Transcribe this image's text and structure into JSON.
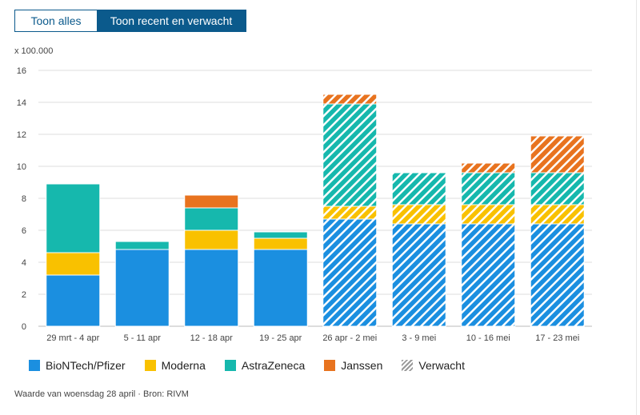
{
  "toggle": {
    "show_all": "Toon alles",
    "show_recent": "Toon recent en verwacht"
  },
  "source_note": "Waarde van woensdag 28 april · Bron: RIVM",
  "colors": {
    "pfizer": "#1b8fe0",
    "moderna": "#f9c100",
    "astrazeneca": "#16b8ad",
    "janssen": "#e8731f",
    "accent": "#0b5a8c",
    "grid": "#dddddd"
  },
  "legend": [
    {
      "key": "pfizer",
      "label": "BioNTech/Pfizer"
    },
    {
      "key": "moderna",
      "label": "Moderna"
    },
    {
      "key": "astrazeneca",
      "label": "AstraZeneca"
    },
    {
      "key": "janssen",
      "label": "Janssen"
    },
    {
      "key": "expected",
      "label": "Verwacht"
    }
  ],
  "chart_data": {
    "type": "bar",
    "stacked": true,
    "unit_label": "x 100.000",
    "ylim": [
      0,
      16
    ],
    "yticks": [
      0,
      2,
      4,
      6,
      8,
      10,
      12,
      14,
      16
    ],
    "categories": [
      "29 mrt - 4 apr",
      "5 - 11 apr",
      "12 - 18 apr",
      "19 - 25 apr",
      "26 apr - 2 mei",
      "3 - 9 mei",
      "10 - 16 mei",
      "17 - 23 mei"
    ],
    "expected": [
      false,
      false,
      false,
      false,
      true,
      true,
      true,
      true
    ],
    "series": [
      {
        "name": "BioNTech/Pfizer",
        "key": "pfizer",
        "values": [
          3.2,
          4.8,
          4.8,
          4.8,
          6.7,
          6.4,
          6.4,
          6.4
        ]
      },
      {
        "name": "Moderna",
        "key": "moderna",
        "values": [
          1.4,
          0.0,
          1.2,
          0.7,
          0.8,
          1.2,
          1.2,
          1.2
        ]
      },
      {
        "name": "AstraZeneca",
        "key": "astrazeneca",
        "values": [
          4.3,
          0.5,
          1.4,
          0.4,
          6.4,
          2.0,
          2.0,
          2.0
        ]
      },
      {
        "name": "Janssen",
        "key": "janssen",
        "values": [
          0.0,
          0.0,
          0.8,
          0.0,
          0.6,
          0.0,
          0.6,
          2.3
        ]
      }
    ]
  }
}
